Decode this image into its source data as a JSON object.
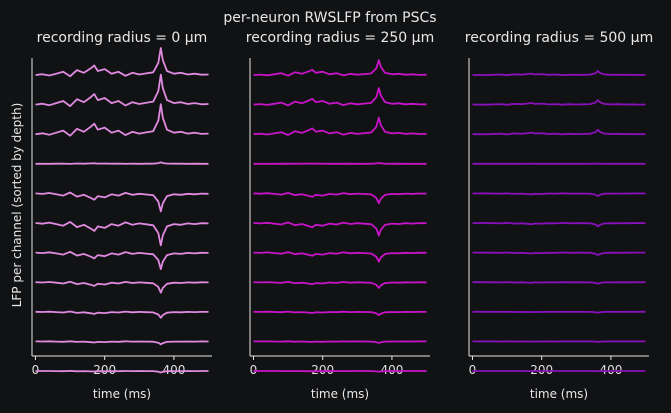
{
  "chart_data": {
    "type": "line",
    "title": "per-neuron RWSLFP from PSCs",
    "ylabel": "LFP per channel (sorted by depth)",
    "xlabel": "time (ms)",
    "xlim": [
      -10,
      510
    ],
    "xticks": [
      0,
      200,
      400
    ],
    "n_channels": 11,
    "time_points": [
      0,
      20,
      40,
      60,
      80,
      100,
      120,
      140,
      160,
      170,
      180,
      200,
      220,
      240,
      260,
      280,
      300,
      320,
      340,
      355,
      362,
      368,
      380,
      400,
      420,
      440,
      460,
      480,
      500
    ],
    "event_shape": [
      0,
      0.03,
      -0.02,
      0.05,
      0.12,
      -0.05,
      0.18,
      0.08,
      0.25,
      0.35,
      0.15,
      0.22,
      0.05,
      0.12,
      -0.03,
      0.08,
      0.02,
      0.06,
      0.1,
      0.45,
      1.0,
      0.55,
      0.15,
      0.05,
      0.08,
      0.02,
      0.05,
      0.01,
      0.02
    ],
    "channel_gains": [
      0.9,
      1.0,
      1.0,
      0.05,
      -0.6,
      -0.75,
      -0.55,
      -0.35,
      -0.2,
      -0.1,
      -0.05
    ],
    "panels": [
      {
        "title": "recording radius = 0 μm",
        "color": "#e08ae0",
        "amplitude": 1.0
      },
      {
        "title": "recording radius = 250 μm",
        "color": "#c814c8",
        "amplitude": 0.55
      },
      {
        "title": "recording radius = 500 μm",
        "color": "#8a10bb",
        "amplitude": 0.15
      }
    ]
  }
}
